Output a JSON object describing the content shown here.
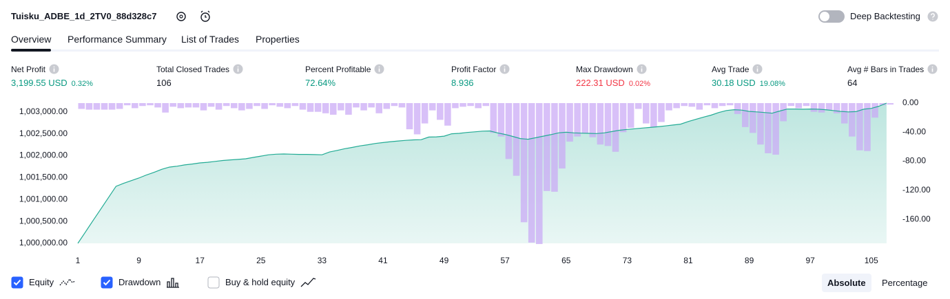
{
  "header": {
    "title": "Tuisku_ADBE_1d_2TV0_88d328c7",
    "toggle": {
      "label": "Deep Backtesting",
      "on": false
    }
  },
  "tabs": {
    "items": [
      "Overview",
      "Performance Summary",
      "List of Trades",
      "Properties"
    ],
    "active": 0
  },
  "metrics": [
    {
      "label": "Net Profit",
      "value": "3,199.55 USD",
      "sub": "0.32%",
      "color": "#089981"
    },
    {
      "label": "Total Closed Trades",
      "value": "106",
      "color": "#131722"
    },
    {
      "label": "Percent Profitable",
      "value": "72.64%",
      "color": "#089981"
    },
    {
      "label": "Profit Factor",
      "value": "8.936",
      "color": "#089981"
    },
    {
      "label": "Max Drawdown",
      "value": "222.31 USD",
      "sub": "0.02%",
      "color": "#f23645"
    },
    {
      "label": "Avg Trade",
      "value": "30.18 USD",
      "sub": "19.08%",
      "color": "#089981"
    },
    {
      "label": "Avg # Bars in Trades",
      "value": "64",
      "color": "#131722"
    }
  ],
  "chart_data": {
    "type": "combo",
    "x": [
      1,
      2,
      3,
      4,
      5,
      6,
      7,
      8,
      9,
      10,
      11,
      12,
      13,
      14,
      15,
      16,
      17,
      18,
      19,
      20,
      21,
      22,
      23,
      24,
      25,
      26,
      27,
      28,
      29,
      30,
      31,
      32,
      33,
      34,
      35,
      36,
      37,
      38,
      39,
      40,
      41,
      42,
      43,
      44,
      45,
      46,
      47,
      48,
      49,
      50,
      51,
      52,
      53,
      54,
      55,
      56,
      57,
      58,
      59,
      60,
      61,
      62,
      63,
      64,
      65,
      66,
      67,
      68,
      69,
      70,
      71,
      72,
      73,
      74,
      75,
      76,
      77,
      78,
      79,
      80,
      81,
      82,
      83,
      84,
      85,
      86,
      87,
      88,
      89,
      90,
      91,
      92,
      93,
      94,
      95,
      96,
      97,
      98,
      99,
      100,
      101,
      102,
      103,
      104,
      105,
      106,
      107
    ],
    "xlim": [
      1,
      108
    ],
    "xticks": [
      1,
      9,
      17,
      25,
      33,
      41,
      49,
      57,
      65,
      73,
      81,
      89,
      97,
      105
    ],
    "ylim": [
      1000000,
      1003200
    ],
    "yticks": [
      {
        "value": 1000000,
        "label": "1,000,000.00"
      },
      {
        "value": 1000500,
        "label": "1,000,500.00"
      },
      {
        "value": 1001000,
        "label": "1,001,000.00"
      },
      {
        "value": 1001500,
        "label": "1,001,500.00"
      },
      {
        "value": 1002000,
        "label": "1,002,000.00"
      },
      {
        "value": 1002500,
        "label": "1,002,500.00"
      },
      {
        "value": 1003000,
        "label": "1,003,000.00"
      }
    ],
    "y2lim": [
      -193,
      0
    ],
    "y2ticks": [
      {
        "value": 0,
        "label": "0.00"
      },
      {
        "value": -40,
        "label": "-40.00"
      },
      {
        "value": -80,
        "label": "-80.00"
      },
      {
        "value": -120,
        "label": "-120.00"
      },
      {
        "value": -160,
        "label": "-160.00"
      }
    ],
    "grid": false,
    "series": [
      {
        "name": "Equity",
        "color": "#22ab94",
        "visible": true,
        "values": [
          1000000,
          1000260,
          1000520,
          1000780,
          1001040,
          1001300,
          1001370,
          1001430,
          1001490,
          1001560,
          1001620,
          1001690,
          1001740,
          1001760,
          1001790,
          1001810,
          1001835,
          1001850,
          1001870,
          1001890,
          1001905,
          1001915,
          1001930,
          1001960,
          1001990,
          1002020,
          1002035,
          1002040,
          1002035,
          1002030,
          1002030,
          1002025,
          1002020,
          1002085,
          1002120,
          1002160,
          1002190,
          1002225,
          1002250,
          1002280,
          1002300,
          1002320,
          1002335,
          1002350,
          1002360,
          1002365,
          1002425,
          1002430,
          1002445,
          1002500,
          1002510,
          1002530,
          1002545,
          1002560,
          1002565,
          1002520,
          1002485,
          1002440,
          1002390,
          1002375,
          1002410,
          1002445,
          1002480,
          1002520,
          1002535,
          1002520,
          1002515,
          1002510,
          1002505,
          1002520,
          1002550,
          1002580,
          1002600,
          1002615,
          1002630,
          1002645,
          1002660,
          1002680,
          1002700,
          1002720,
          1002780,
          1002830,
          1002880,
          1002925,
          1002985,
          1003030,
          1003050,
          1003040,
          1003010,
          1003000,
          1002985,
          1002970,
          1003020,
          1003065,
          1003065,
          1003060,
          1003065,
          1003060,
          1003050,
          1003030,
          1003010,
          1003000,
          1003005,
          1003060,
          1003080,
          1003130,
          1003199.55
        ]
      },
      {
        "name": "Drawdown",
        "color": "#c9a8f5",
        "axis": "y2",
        "visible": true,
        "values": [
          -8,
          -9,
          -9,
          -9,
          -9,
          -8,
          -3,
          -7,
          -4,
          -3,
          -6,
          -13,
          -5,
          -7,
          -6,
          -6,
          -10,
          -5,
          -9,
          -4,
          -7,
          -10,
          -8,
          -4,
          -8,
          -3,
          -5,
          -7,
          -4,
          -9,
          -12,
          -12,
          -14,
          -16,
          -10,
          -16,
          -6,
          -10,
          -6,
          -14,
          -8,
          -4,
          -6,
          -36,
          -43,
          -28,
          -10,
          -23,
          -31,
          -7,
          -5,
          -4,
          -7,
          -4,
          -41,
          -46,
          -77,
          -100,
          -164,
          -192,
          -194,
          -121,
          -122,
          -90,
          -53,
          -46,
          -42,
          -47,
          -57,
          -59,
          -67,
          -40,
          -34,
          -8,
          -28,
          -33,
          -26,
          -10,
          -7,
          -4,
          -5,
          -9,
          -3,
          -7,
          -4,
          -3,
          -15,
          -33,
          -41,
          -57,
          -69,
          -71,
          -25,
          -4,
          -7,
          -4,
          -12,
          -13,
          -10,
          -14,
          -28,
          -46,
          -65,
          -66,
          -20,
          -3,
          -2
        ]
      }
    ],
    "buy_hold": {
      "name": "Buy & hold equity",
      "visible": false
    }
  },
  "view": {
    "buttons": [
      "Absolute",
      "Percentage"
    ],
    "active": 0
  }
}
